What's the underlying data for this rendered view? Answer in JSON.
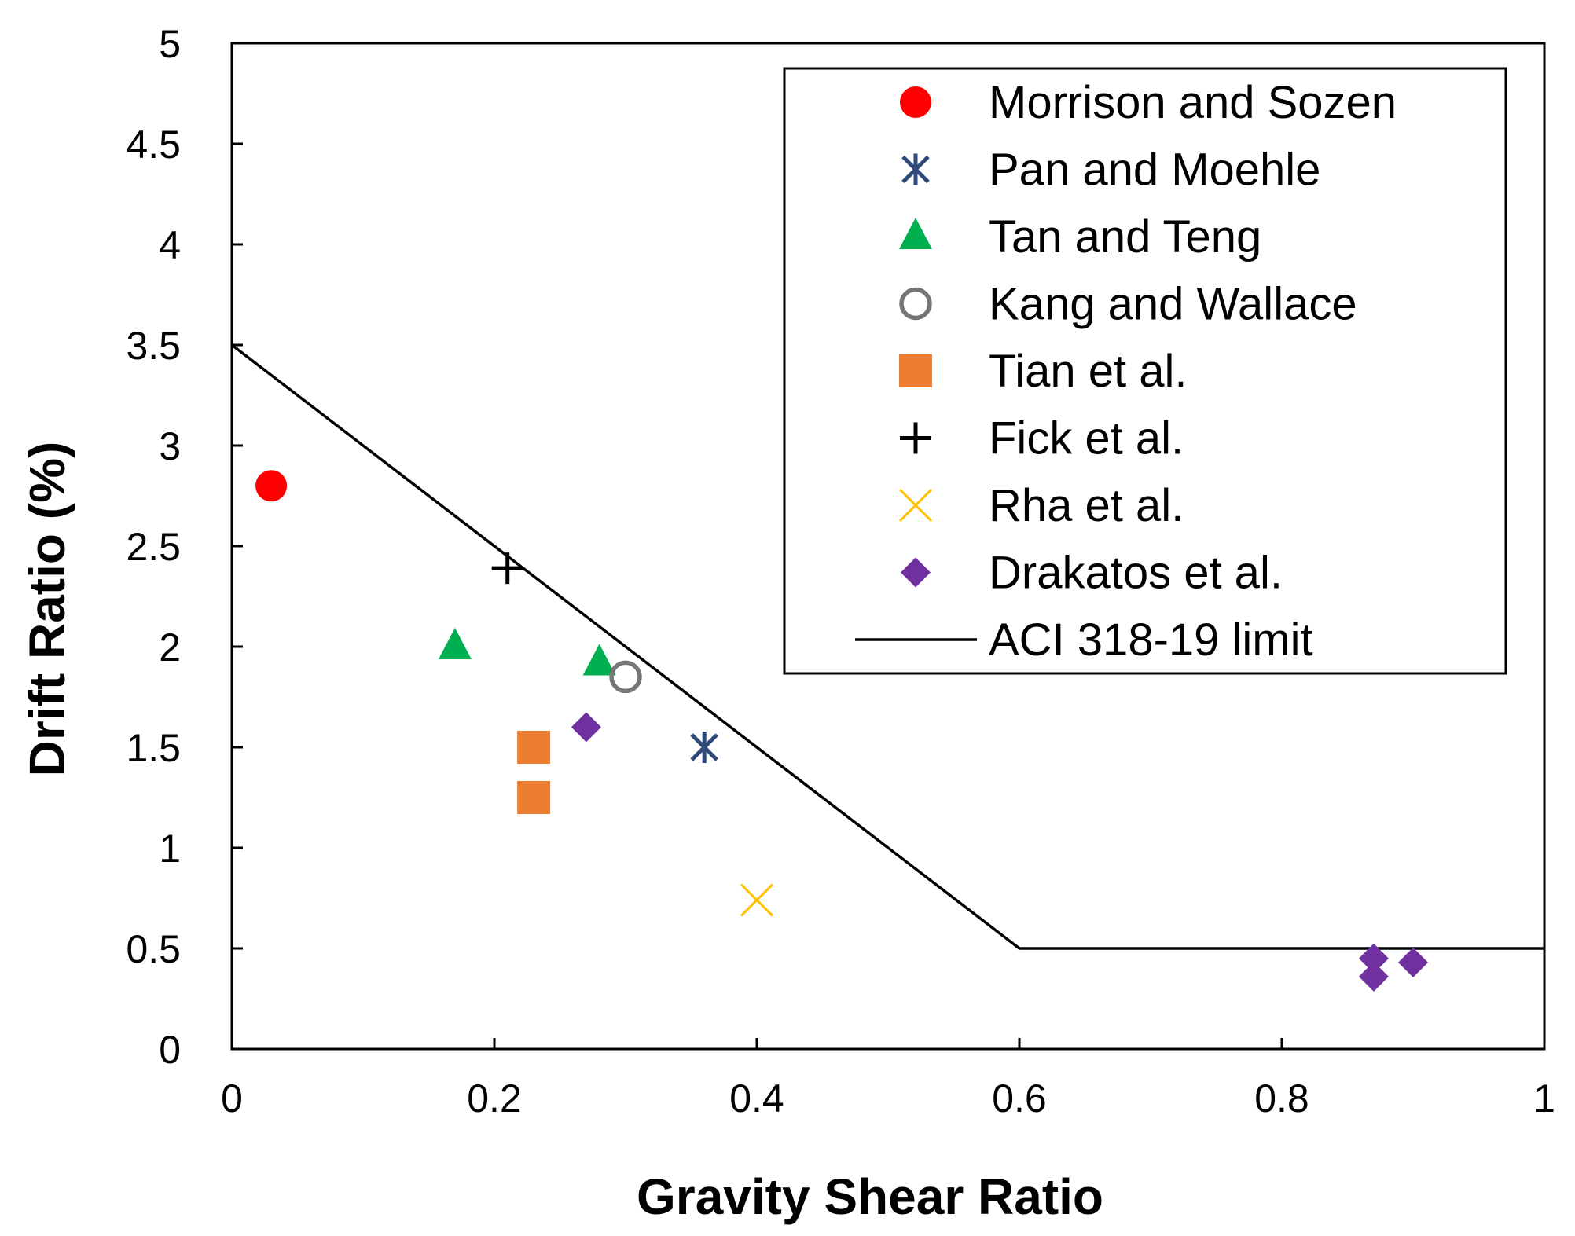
{
  "chart_data": {
    "type": "scatter",
    "title": "",
    "xlabel": "Gravity Shear Ratio",
    "ylabel": "Drift Ratio (%)",
    "xlim": [
      0,
      1
    ],
    "ylim": [
      0,
      5
    ],
    "x_ticks": [
      {
        "value": 0,
        "label": "0"
      },
      {
        "value": 0.2,
        "label": "0.2"
      },
      {
        "value": 0.4,
        "label": "0.4"
      },
      {
        "value": 0.6,
        "label": "0.6"
      },
      {
        "value": 0.8,
        "label": "0.8"
      },
      {
        "value": 1,
        "label": "1"
      }
    ],
    "y_ticks": [
      {
        "value": 0,
        "label": "0"
      },
      {
        "value": 0.5,
        "label": "0.5"
      },
      {
        "value": 1,
        "label": "1"
      },
      {
        "value": 1.5,
        "label": "1.5"
      },
      {
        "value": 2,
        "label": "2"
      },
      {
        "value": 2.5,
        "label": "2.5"
      },
      {
        "value": 3,
        "label": "3"
      },
      {
        "value": 3.5,
        "label": "3.5"
      },
      {
        "value": 4,
        "label": "4"
      },
      {
        "value": 4.5,
        "label": "4.5"
      },
      {
        "value": 5,
        "label": "5"
      }
    ],
    "grid": false,
    "legend_position": "top-right",
    "series": [
      {
        "name": "Morrison and Sozen",
        "marker": "circle",
        "color": "#ff0000",
        "points": [
          {
            "x": 0.03,
            "y": 2.8
          }
        ]
      },
      {
        "name": "Pan and Moehle",
        "marker": "asterisk",
        "color": "#2f4a7a",
        "points": [
          {
            "x": 0.36,
            "y": 1.5
          }
        ]
      },
      {
        "name": "Tan and Teng",
        "marker": "triangle",
        "color": "#00b050",
        "points": [
          {
            "x": 0.17,
            "y": 2.0
          },
          {
            "x": 0.28,
            "y": 1.92
          }
        ]
      },
      {
        "name": "Kang and Wallace",
        "marker": "open-circle",
        "color": "#767676",
        "points": [
          {
            "x": 0.3,
            "y": 1.85
          }
        ]
      },
      {
        "name": "Tian et al.",
        "marker": "square",
        "color": "#ed7d31",
        "points": [
          {
            "x": 0.23,
            "y": 1.5
          },
          {
            "x": 0.23,
            "y": 1.25
          }
        ]
      },
      {
        "name": "Fick et al.",
        "marker": "plus",
        "color": "#000000",
        "points": [
          {
            "x": 0.21,
            "y": 2.39
          }
        ]
      },
      {
        "name": "Rha et al.",
        "marker": "cross",
        "color": "#ffc000",
        "points": [
          {
            "x": 0.4,
            "y": 0.74
          }
        ]
      },
      {
        "name": "Drakatos et al.",
        "marker": "diamond",
        "color": "#7030a0",
        "points": [
          {
            "x": 0.27,
            "y": 1.6
          },
          {
            "x": 0.87,
            "y": 0.45
          },
          {
            "x": 0.87,
            "y": 0.36
          },
          {
            "x": 0.9,
            "y": 0.43
          }
        ]
      }
    ],
    "lines": [
      {
        "name": "ACI 318-19 limit",
        "color": "#000000",
        "points": [
          {
            "x": 0,
            "y": 3.5
          },
          {
            "x": 0.6,
            "y": 0.5
          },
          {
            "x": 1,
            "y": 0.5
          }
        ]
      }
    ]
  }
}
